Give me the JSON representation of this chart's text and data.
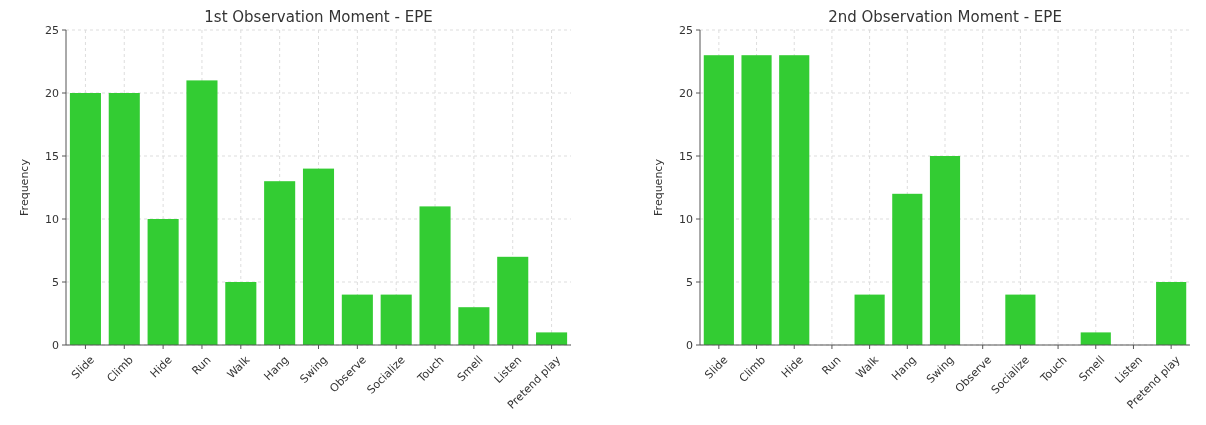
{
  "chart_data": [
    {
      "type": "bar",
      "title": "1st Observation Moment - EPE",
      "ylabel": "Frequency",
      "categories": [
        "Slide",
        "Climb",
        "Hide",
        "Run",
        "Walk",
        "Hang",
        "Swing",
        "Observe",
        "Socialize",
        "Touch",
        "Smell",
        "Listen",
        "Pretend play"
      ],
      "values": [
        20,
        20,
        10,
        21,
        5,
        13,
        14,
        4,
        4,
        11,
        3,
        7,
        1
      ],
      "color": "#33cc33",
      "ylim": [
        0,
        25
      ],
      "yticks": [
        0,
        5,
        10,
        15,
        20,
        25
      ],
      "grid": true
    },
    {
      "type": "bar",
      "title": "2nd Observation Moment - EPE",
      "ylabel": "Frequency",
      "categories": [
        "Slide",
        "Climb",
        "Hide",
        "Run",
        "Walk",
        "Hang",
        "Swing",
        "Observe",
        "Socialize",
        "Touch",
        "Smell",
        "Listen",
        "Pretend play"
      ],
      "values": [
        23,
        23,
        23,
        0,
        4,
        12,
        15,
        0,
        4,
        0,
        1,
        0,
        5
      ],
      "color": "#33cc33",
      "ylim": [
        0,
        25
      ],
      "yticks": [
        0,
        5,
        10,
        15,
        20,
        25
      ],
      "grid": true
    }
  ]
}
